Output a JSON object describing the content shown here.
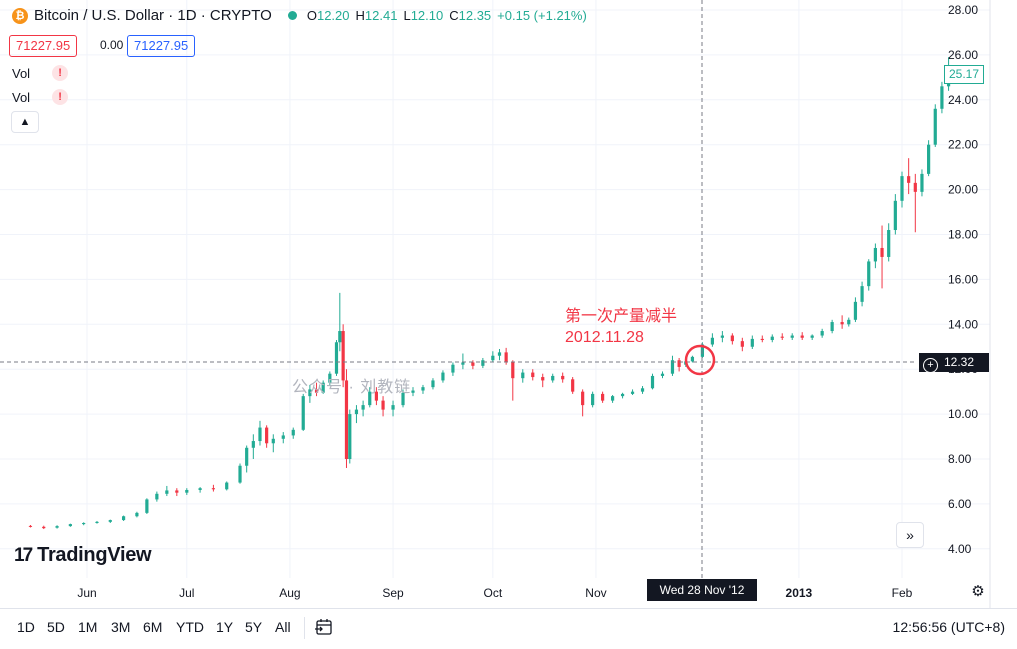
{
  "legend": {
    "icon": "bitcoin-icon",
    "title": "Bitcoin / U.S. Dollar · 1D · CRYPTO",
    "o_label": "O",
    "o": "12.20",
    "h_label": "H",
    "h": "12.41",
    "l_label": "L",
    "l": "12.10",
    "c_label": "C",
    "c": "12.35",
    "change": "+0.15 (+1.21%)"
  },
  "quote": {
    "sell": "71227.95",
    "spread": "0.00",
    "buy": "71227.95"
  },
  "indicators": [
    {
      "label": "Vol",
      "icon": "warning-icon"
    },
    {
      "label": "Vol",
      "icon": "warning-icon"
    }
  ],
  "collapse_icon": "chevron-up-icon",
  "brand": {
    "logo": "TV",
    "name": "TradingView"
  },
  "scroll_icon": "double-chevron-right-icon",
  "annotation": {
    "line1": "第一次产量减半",
    "line2": "2012.11.28"
  },
  "watermark": "公众号 · 刘教链",
  "crosshair": {
    "x_label": "Wed 28 Nov '12",
    "y_label": "12.32",
    "y_icon": "plus-circle-icon"
  },
  "last_price": "25.17",
  "settings_icon": "gear-icon",
  "toolbar": {
    "timeframes": [
      "1D",
      "5D",
      "1M",
      "3M",
      "6M",
      "YTD",
      "1Y",
      "5Y",
      "All"
    ],
    "range_icon": "calendar-range-icon",
    "clock": "12:56:56 (UTC+8)"
  },
  "colors": {
    "up": "#22ab94",
    "down": "#f23645",
    "annotation": "#f23645"
  },
  "chart_data": {
    "type": "candlestick",
    "title": "Bitcoin / U.S. Dollar · 1D · CRYPTO",
    "x_ticks": [
      "Jun",
      "Jul",
      "Aug",
      "Sep",
      "Oct",
      "Nov",
      "2013",
      "Feb"
    ],
    "y_ticks": [
      "4.00",
      "6.00",
      "8.00",
      "10.00",
      "12.00",
      "14.00",
      "16.00",
      "18.00",
      "20.00",
      "22.00",
      "24.00",
      "26.00",
      "28.00"
    ],
    "ylim": [
      3.5,
      28.3
    ],
    "grid": true,
    "series": [
      {
        "date": "2012-05-15",
        "o": 5.02,
        "h": 5.06,
        "l": 4.95,
        "c": 4.98
      },
      {
        "date": "2012-05-19",
        "o": 4.98,
        "h": 5.03,
        "l": 4.88,
        "c": 4.92
      },
      {
        "date": "2012-05-23",
        "o": 4.94,
        "h": 5.05,
        "l": 4.9,
        "c": 5.01
      },
      {
        "date": "2012-05-27",
        "o": 5.01,
        "h": 5.12,
        "l": 4.98,
        "c": 5.1
      },
      {
        "date": "2012-05-31",
        "o": 5.1,
        "h": 5.18,
        "l": 5.05,
        "c": 5.15
      },
      {
        "date": "2012-06-04",
        "o": 5.15,
        "h": 5.24,
        "l": 5.12,
        "c": 5.2
      },
      {
        "date": "2012-06-08",
        "o": 5.2,
        "h": 5.3,
        "l": 5.15,
        "c": 5.28
      },
      {
        "date": "2012-06-12",
        "o": 5.28,
        "h": 5.48,
        "l": 5.24,
        "c": 5.45
      },
      {
        "date": "2012-06-16",
        "o": 5.45,
        "h": 5.65,
        "l": 5.4,
        "c": 5.6
      },
      {
        "date": "2012-06-19",
        "o": 5.6,
        "h": 6.25,
        "l": 5.55,
        "c": 6.2
      },
      {
        "date": "2012-06-22",
        "o": 6.2,
        "h": 6.55,
        "l": 6.1,
        "c": 6.45
      },
      {
        "date": "2012-06-25",
        "o": 6.45,
        "h": 6.8,
        "l": 6.35,
        "c": 6.6
      },
      {
        "date": "2012-06-28",
        "o": 6.6,
        "h": 6.7,
        "l": 6.35,
        "c": 6.5
      },
      {
        "date": "2012-07-01",
        "o": 6.5,
        "h": 6.7,
        "l": 6.4,
        "c": 6.62
      },
      {
        "date": "2012-07-05",
        "o": 6.62,
        "h": 6.75,
        "l": 6.5,
        "c": 6.7
      },
      {
        "date": "2012-07-09",
        "o": 6.7,
        "h": 6.85,
        "l": 6.55,
        "c": 6.65
      },
      {
        "date": "2012-07-13",
        "o": 6.65,
        "h": 7.0,
        "l": 6.6,
        "c": 6.95
      },
      {
        "date": "2012-07-17",
        "o": 6.95,
        "h": 7.8,
        "l": 6.9,
        "c": 7.7
      },
      {
        "date": "2012-07-19",
        "o": 7.7,
        "h": 8.6,
        "l": 7.4,
        "c": 8.5
      },
      {
        "date": "2012-07-21",
        "o": 8.5,
        "h": 9.1,
        "l": 8.0,
        "c": 8.8
      },
      {
        "date": "2012-07-23",
        "o": 8.8,
        "h": 9.7,
        "l": 8.6,
        "c": 9.4
      },
      {
        "date": "2012-07-25",
        "o": 9.4,
        "h": 9.5,
        "l": 8.5,
        "c": 8.7
      },
      {
        "date": "2012-07-27",
        "o": 8.7,
        "h": 9.1,
        "l": 8.3,
        "c": 8.9
      },
      {
        "date": "2012-07-30",
        "o": 8.9,
        "h": 9.2,
        "l": 8.7,
        "c": 9.05
      },
      {
        "date": "2012-08-02",
        "o": 9.05,
        "h": 9.4,
        "l": 8.9,
        "c": 9.3
      },
      {
        "date": "2012-08-05",
        "o": 9.3,
        "h": 10.9,
        "l": 9.25,
        "c": 10.8
      },
      {
        "date": "2012-08-07",
        "o": 10.8,
        "h": 11.3,
        "l": 10.5,
        "c": 11.1
      },
      {
        "date": "2012-08-09",
        "o": 11.1,
        "h": 11.4,
        "l": 10.8,
        "c": 10.95
      },
      {
        "date": "2012-08-11",
        "o": 10.95,
        "h": 11.5,
        "l": 10.9,
        "c": 11.4
      },
      {
        "date": "2012-08-13",
        "o": 11.4,
        "h": 11.9,
        "l": 11.3,
        "c": 11.8
      },
      {
        "date": "2012-08-15",
        "o": 11.8,
        "h": 13.3,
        "l": 11.7,
        "c": 13.2
      },
      {
        "date": "2012-08-16",
        "o": 13.2,
        "h": 15.4,
        "l": 12.8,
        "c": 13.7
      },
      {
        "date": "2012-08-17",
        "o": 13.7,
        "h": 14.0,
        "l": 11.2,
        "c": 11.5
      },
      {
        "date": "2012-08-18",
        "o": 11.5,
        "h": 12.0,
        "l": 7.6,
        "c": 8.0
      },
      {
        "date": "2012-08-19",
        "o": 8.0,
        "h": 10.2,
        "l": 7.8,
        "c": 10.0
      },
      {
        "date": "2012-08-21",
        "o": 10.0,
        "h": 10.4,
        "l": 9.6,
        "c": 10.2
      },
      {
        "date": "2012-08-23",
        "o": 10.2,
        "h": 10.6,
        "l": 9.9,
        "c": 10.4
      },
      {
        "date": "2012-08-25",
        "o": 10.4,
        "h": 11.2,
        "l": 10.3,
        "c": 11.0
      },
      {
        "date": "2012-08-27",
        "o": 11.0,
        "h": 11.2,
        "l": 10.4,
        "c": 10.6
      },
      {
        "date": "2012-08-29",
        "o": 10.6,
        "h": 10.8,
        "l": 9.9,
        "c": 10.2
      },
      {
        "date": "2012-09-01",
        "o": 10.2,
        "h": 10.6,
        "l": 9.9,
        "c": 10.4
      },
      {
        "date": "2012-09-04",
        "o": 10.4,
        "h": 11.1,
        "l": 10.3,
        "c": 10.95
      },
      {
        "date": "2012-09-07",
        "o": 10.95,
        "h": 11.2,
        "l": 10.8,
        "c": 11.05
      },
      {
        "date": "2012-09-10",
        "o": 11.05,
        "h": 11.3,
        "l": 10.9,
        "c": 11.2
      },
      {
        "date": "2012-09-13",
        "o": 11.2,
        "h": 11.6,
        "l": 11.1,
        "c": 11.5
      },
      {
        "date": "2012-09-16",
        "o": 11.5,
        "h": 11.95,
        "l": 11.4,
        "c": 11.85
      },
      {
        "date": "2012-09-19",
        "o": 11.85,
        "h": 12.3,
        "l": 11.7,
        "c": 12.2
      },
      {
        "date": "2012-09-22",
        "o": 12.2,
        "h": 12.7,
        "l": 12.0,
        "c": 12.3
      },
      {
        "date": "2012-09-25",
        "o": 12.3,
        "h": 12.4,
        "l": 12.0,
        "c": 12.15
      },
      {
        "date": "2012-09-28",
        "o": 12.15,
        "h": 12.5,
        "l": 12.05,
        "c": 12.4
      },
      {
        "date": "2012-10-01",
        "o": 12.4,
        "h": 12.8,
        "l": 12.3,
        "c": 12.6
      },
      {
        "date": "2012-10-03",
        "o": 12.6,
        "h": 12.9,
        "l": 12.4,
        "c": 12.75
      },
      {
        "date": "2012-10-05",
        "o": 12.75,
        "h": 12.95,
        "l": 12.2,
        "c": 12.3
      },
      {
        "date": "2012-10-07",
        "o": 12.3,
        "h": 12.4,
        "l": 10.6,
        "c": 11.6
      },
      {
        "date": "2012-10-10",
        "o": 11.6,
        "h": 12.0,
        "l": 11.4,
        "c": 11.85
      },
      {
        "date": "2012-10-13",
        "o": 11.85,
        "h": 12.0,
        "l": 11.5,
        "c": 11.65
      },
      {
        "date": "2012-10-16",
        "o": 11.65,
        "h": 11.8,
        "l": 11.2,
        "c": 11.5
      },
      {
        "date": "2012-10-19",
        "o": 11.5,
        "h": 11.8,
        "l": 11.4,
        "c": 11.7
      },
      {
        "date": "2012-10-22",
        "o": 11.7,
        "h": 11.85,
        "l": 11.4,
        "c": 11.55
      },
      {
        "date": "2012-10-25",
        "o": 11.55,
        "h": 11.65,
        "l": 10.9,
        "c": 11.0
      },
      {
        "date": "2012-10-28",
        "o": 11.0,
        "h": 11.1,
        "l": 9.9,
        "c": 10.4
      },
      {
        "date": "2012-10-31",
        "o": 10.4,
        "h": 11.0,
        "l": 10.3,
        "c": 10.9
      },
      {
        "date": "2012-11-03",
        "o": 10.9,
        "h": 11.0,
        "l": 10.5,
        "c": 10.6
      },
      {
        "date": "2012-11-06",
        "o": 10.6,
        "h": 10.85,
        "l": 10.5,
        "c": 10.8
      },
      {
        "date": "2012-11-09",
        "o": 10.8,
        "h": 10.95,
        "l": 10.7,
        "c": 10.9
      },
      {
        "date": "2012-11-12",
        "o": 10.9,
        "h": 11.1,
        "l": 10.85,
        "c": 11.0
      },
      {
        "date": "2012-11-15",
        "o": 11.0,
        "h": 11.25,
        "l": 10.9,
        "c": 11.15
      },
      {
        "date": "2012-11-18",
        "o": 11.15,
        "h": 11.8,
        "l": 11.1,
        "c": 11.7
      },
      {
        "date": "2012-11-21",
        "o": 11.7,
        "h": 11.9,
        "l": 11.6,
        "c": 11.8
      },
      {
        "date": "2012-11-24",
        "o": 11.8,
        "h": 12.6,
        "l": 11.7,
        "c": 12.4
      },
      {
        "date": "2012-11-26",
        "o": 12.4,
        "h": 12.5,
        "l": 11.9,
        "c": 12.1
      },
      {
        "date": "2012-11-28",
        "o": 12.2,
        "h": 12.41,
        "l": 12.1,
        "c": 12.35
      },
      {
        "date": "2012-11-30",
        "o": 12.35,
        "h": 12.6,
        "l": 12.3,
        "c": 12.55
      },
      {
        "date": "2012-12-03",
        "o": 12.55,
        "h": 13.2,
        "l": 12.5,
        "c": 13.1
      },
      {
        "date": "2012-12-06",
        "o": 13.1,
        "h": 13.6,
        "l": 13.0,
        "c": 13.4
      },
      {
        "date": "2012-12-09",
        "o": 13.4,
        "h": 13.7,
        "l": 13.2,
        "c": 13.5
      },
      {
        "date": "2012-12-12",
        "o": 13.5,
        "h": 13.6,
        "l": 13.1,
        "c": 13.25
      },
      {
        "date": "2012-12-15",
        "o": 13.25,
        "h": 13.4,
        "l": 12.8,
        "c": 13.0
      },
      {
        "date": "2012-12-18",
        "o": 13.0,
        "h": 13.5,
        "l": 12.9,
        "c": 13.35
      },
      {
        "date": "2012-12-21",
        "o": 13.35,
        "h": 13.5,
        "l": 13.2,
        "c": 13.3
      },
      {
        "date": "2012-12-24",
        "o": 13.3,
        "h": 13.55,
        "l": 13.2,
        "c": 13.45
      },
      {
        "date": "2012-12-27",
        "o": 13.45,
        "h": 13.6,
        "l": 13.3,
        "c": 13.4
      },
      {
        "date": "2012-12-30",
        "o": 13.4,
        "h": 13.6,
        "l": 13.3,
        "c": 13.5
      },
      {
        "date": "2013-01-02",
        "o": 13.5,
        "h": 13.65,
        "l": 13.3,
        "c": 13.4
      },
      {
        "date": "2013-01-05",
        "o": 13.4,
        "h": 13.55,
        "l": 13.3,
        "c": 13.5
      },
      {
        "date": "2013-01-08",
        "o": 13.5,
        "h": 13.8,
        "l": 13.4,
        "c": 13.7
      },
      {
        "date": "2013-01-11",
        "o": 13.7,
        "h": 14.2,
        "l": 13.6,
        "c": 14.1
      },
      {
        "date": "2013-01-14",
        "o": 14.1,
        "h": 14.4,
        "l": 13.8,
        "c": 14.0
      },
      {
        "date": "2013-01-16",
        "o": 14.0,
        "h": 14.3,
        "l": 13.9,
        "c": 14.2
      },
      {
        "date": "2013-01-18",
        "o": 14.2,
        "h": 15.2,
        "l": 14.1,
        "c": 15.0
      },
      {
        "date": "2013-01-20",
        "o": 15.0,
        "h": 15.9,
        "l": 14.8,
        "c": 15.7
      },
      {
        "date": "2013-01-22",
        "o": 15.7,
        "h": 16.9,
        "l": 15.5,
        "c": 16.8
      },
      {
        "date": "2013-01-24",
        "o": 16.8,
        "h": 17.6,
        "l": 16.5,
        "c": 17.4
      },
      {
        "date": "2013-01-26",
        "o": 17.4,
        "h": 18.4,
        "l": 15.6,
        "c": 17.0
      },
      {
        "date": "2013-01-28",
        "o": 17.0,
        "h": 18.5,
        "l": 16.8,
        "c": 18.2
      },
      {
        "date": "2013-01-30",
        "o": 18.2,
        "h": 19.8,
        "l": 18.0,
        "c": 19.5
      },
      {
        "date": "2013-02-01",
        "o": 19.5,
        "h": 20.8,
        "l": 19.2,
        "c": 20.6
      },
      {
        "date": "2013-02-03",
        "o": 20.6,
        "h": 21.4,
        "l": 19.8,
        "c": 20.3
      },
      {
        "date": "2013-02-05",
        "o": 20.3,
        "h": 20.7,
        "l": 18.1,
        "c": 19.9
      },
      {
        "date": "2013-02-07",
        "o": 19.9,
        "h": 20.9,
        "l": 19.7,
        "c": 20.7
      },
      {
        "date": "2013-02-09",
        "o": 20.7,
        "h": 22.2,
        "l": 20.6,
        "c": 22.0
      },
      {
        "date": "2013-02-11",
        "o": 22.0,
        "h": 23.8,
        "l": 21.9,
        "c": 23.6
      },
      {
        "date": "2013-02-13",
        "o": 23.6,
        "h": 24.8,
        "l": 23.4,
        "c": 24.6
      },
      {
        "date": "2013-02-15",
        "o": 24.6,
        "h": 25.9,
        "l": 24.4,
        "c": 25.17
      }
    ]
  }
}
